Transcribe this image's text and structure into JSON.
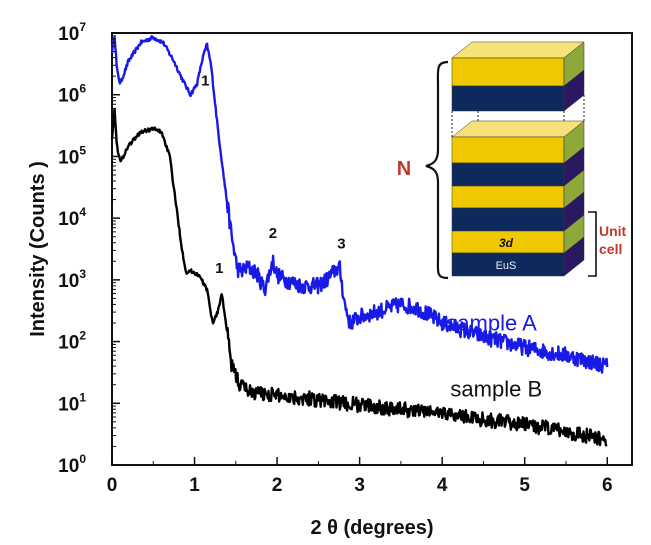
{
  "chart_data": {
    "type": "line",
    "xlabel": "2 θ (degrees)",
    "ylabel": "Intensity (Counts )",
    "xlim": [
      0,
      6.3
    ],
    "ylim": [
      1,
      10000000
    ],
    "yscale": "log",
    "xticks": [
      "0",
      "1",
      "2",
      "3",
      "4",
      "5",
      "6"
    ],
    "xtick_values": [
      0,
      1,
      2,
      3,
      4,
      5,
      6
    ],
    "yticks": [
      {
        "base": "10",
        "exp": "0",
        "value": 1
      },
      {
        "base": "10",
        "exp": "1",
        "value": 10
      },
      {
        "base": "10",
        "exp": "2",
        "value": 100
      },
      {
        "base": "10",
        "exp": "3",
        "value": 1000
      },
      {
        "base": "10",
        "exp": "4",
        "value": 10000
      },
      {
        "base": "10",
        "exp": "5",
        "value": 100000
      },
      {
        "base": "10",
        "exp": "6",
        "value": 1000000
      },
      {
        "base": "10",
        "exp": "7",
        "value": 10000000
      }
    ],
    "grid": false,
    "series": [
      {
        "name": "sample A",
        "color": "#1a1ae6",
        "noise": 0.13,
        "x": [
          0.0,
          0.03,
          0.06,
          0.1,
          0.2,
          0.35,
          0.5,
          0.62,
          0.75,
          0.85,
          0.95,
          1.03,
          1.1,
          1.15,
          1.2,
          1.28,
          1.36,
          1.45,
          1.52,
          1.58,
          1.65,
          1.75,
          1.85,
          1.9,
          1.95,
          2.0,
          2.1,
          2.3,
          2.5,
          2.6,
          2.72,
          2.76,
          2.82,
          2.88,
          3.0,
          3.2,
          3.5,
          3.7,
          4.0,
          4.5,
          5.0,
          5.5,
          6.0
        ],
        "y": [
          5000000,
          10000000,
          2500000,
          1500000,
          3500000,
          7000000,
          8500000,
          7000000,
          3500000,
          1800000,
          1000000,
          1500000,
          4000000,
          6500000,
          3000000,
          300000,
          40000,
          5000,
          1500,
          1400,
          1600,
          1300,
          700,
          1200,
          2000,
          1200,
          1000,
          800,
          800,
          1000,
          1500,
          1500,
          400,
          200,
          250,
          300,
          400,
          350,
          200,
          120,
          80,
          60,
          40
        ]
      },
      {
        "name": "sample B",
        "color": "#000000",
        "noise": 0.12,
        "x": [
          0.0,
          0.03,
          0.06,
          0.1,
          0.2,
          0.35,
          0.5,
          0.6,
          0.7,
          0.78,
          0.85,
          0.9,
          0.95,
          1.05,
          1.15,
          1.22,
          1.28,
          1.33,
          1.38,
          1.45,
          1.55,
          1.7,
          1.9,
          2.1,
          2.4,
          2.8,
          3.5,
          4.0,
          4.5,
          5.0,
          5.5,
          6.0
        ],
        "y": [
          200000,
          600000,
          150000,
          80000,
          150000,
          250000,
          280000,
          250000,
          100000,
          15000,
          3000,
          1300,
          1400,
          1200,
          700,
          200,
          300,
          600,
          200,
          40,
          20,
          15,
          14,
          13,
          12,
          10,
          8,
          7,
          5.5,
          4.5,
          3.5,
          2.5
        ]
      }
    ],
    "annotations": [
      {
        "text": "1",
        "x": 1.13,
        "y": 1400000
      },
      {
        "text": "2",
        "x": 1.95,
        "y": 4800
      },
      {
        "text": "3",
        "x": 2.78,
        "y": 3200
      },
      {
        "text": "1",
        "x": 1.3,
        "y": 1300
      }
    ],
    "series_labels": [
      {
        "text": "sample A",
        "color": "#1a1ae6",
        "x": 4.05,
        "y": 150
      },
      {
        "text": "sample B",
        "color": "#111111",
        "x": 4.1,
        "y": 13
      }
    ]
  },
  "inset": {
    "n_label": "N",
    "layer_3d_label": "3d",
    "layer_eus_label": "EuS",
    "unit_cell_label_1": "Unit",
    "unit_cell_label_2": "cell",
    "colors": {
      "yellow": "#f0c800",
      "yellow_side": "#8fa83a",
      "navy": "#0e2a5c",
      "navy_side": "#2a1860",
      "red_label": "#c0392b"
    }
  }
}
